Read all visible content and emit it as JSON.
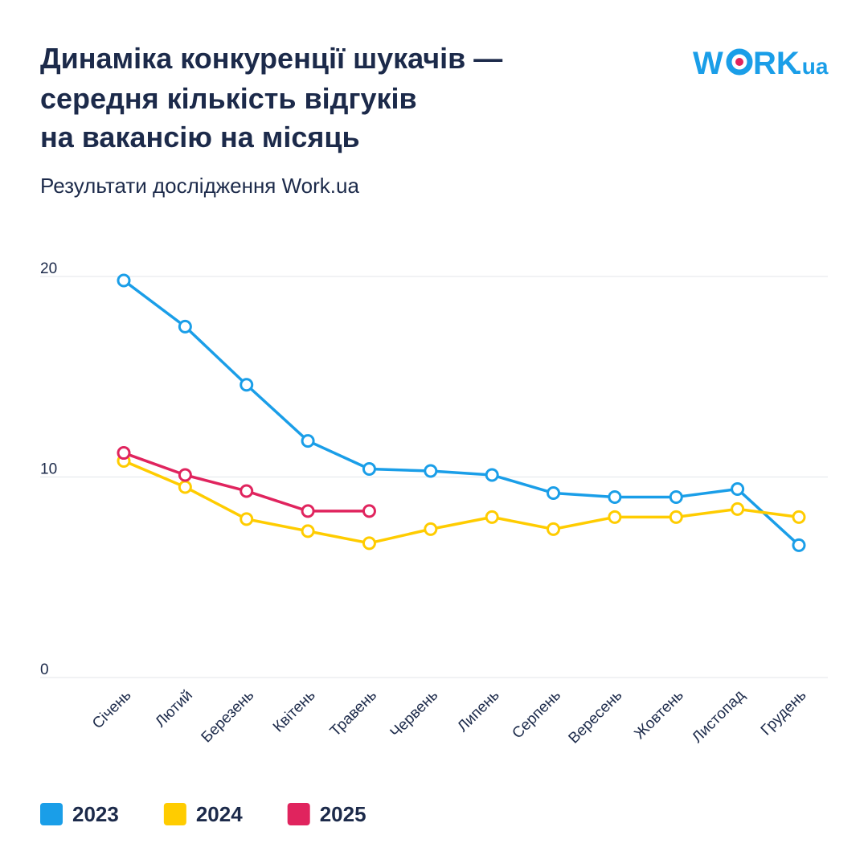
{
  "chart_data": {
    "type": "line",
    "title": [
      "Динаміка конкуренції шукачів —",
      "середня кількість відгуків",
      "на вакансію на місяць"
    ],
    "subtitle": "Результати дослідження Work.ua",
    "logo": [
      "W",
      "RK",
      ".ua"
    ],
    "categories": [
      "Січень",
      "Лютий",
      "Березень",
      "Квітень",
      "Травень",
      "Червень",
      "Липень",
      "Серпень",
      "Вересень",
      "Жовтень",
      "Листопад",
      "Грудень"
    ],
    "series": [
      {
        "name": "2023",
        "color": "#1a9ee8",
        "values": [
          19.8,
          17.5,
          14.6,
          11.8,
          10.4,
          10.3,
          10.1,
          9.2,
          9.0,
          9.0,
          9.4,
          6.6
        ]
      },
      {
        "name": "2024",
        "color": "#ffcc00",
        "values": [
          10.8,
          9.5,
          7.9,
          7.3,
          6.7,
          7.4,
          8.0,
          7.4,
          8.0,
          8.0,
          8.4,
          8.0
        ]
      },
      {
        "name": "2025",
        "color": "#e0245e",
        "values": [
          11.2,
          10.1,
          9.3,
          8.3,
          8.3,
          null,
          null,
          null,
          null,
          null,
          null,
          null
        ]
      }
    ],
    "ylim": [
      0,
      20
    ],
    "yticks": [
      0,
      10,
      20
    ],
    "grid": true,
    "legend": "bottom-left"
  }
}
